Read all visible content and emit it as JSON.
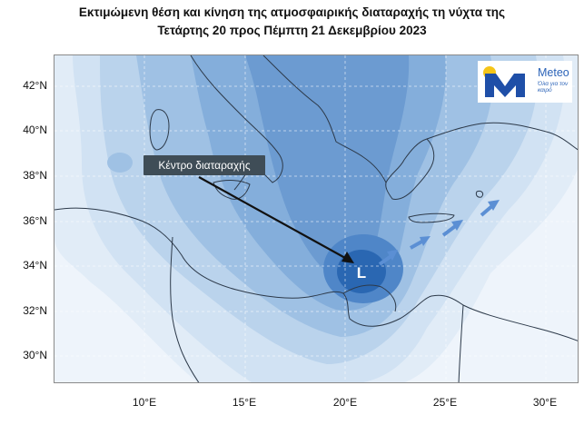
{
  "title_line1": "Εκτιμώμενη θέση και κίνηση της ατμοσφαιρικής διαταραχής τη νύχτα της",
  "title_line2": "Τετάρτης 20 προς Πέμπτη 21 Δεκεμβρίου 2023",
  "latitudes": [
    "42°N",
    "40°N",
    "38°N",
    "36°N",
    "34°N",
    "32°N",
    "30°N"
  ],
  "longitudes": [
    "10°E",
    "15°E",
    "20°E",
    "25°E",
    "30°E"
  ],
  "annotation": "Κέντρο διαταραχής",
  "low_marker": "L",
  "logo": {
    "icon": "sun-and-m-logo-icon",
    "brand": "Meteo",
    "tagline": "Όλα για τον καιρό"
  },
  "colors": {
    "sea_background": "#eef4fb",
    "deep_blue": "#1f5ea8",
    "arrow_blue": "#5b8fd4"
  }
}
